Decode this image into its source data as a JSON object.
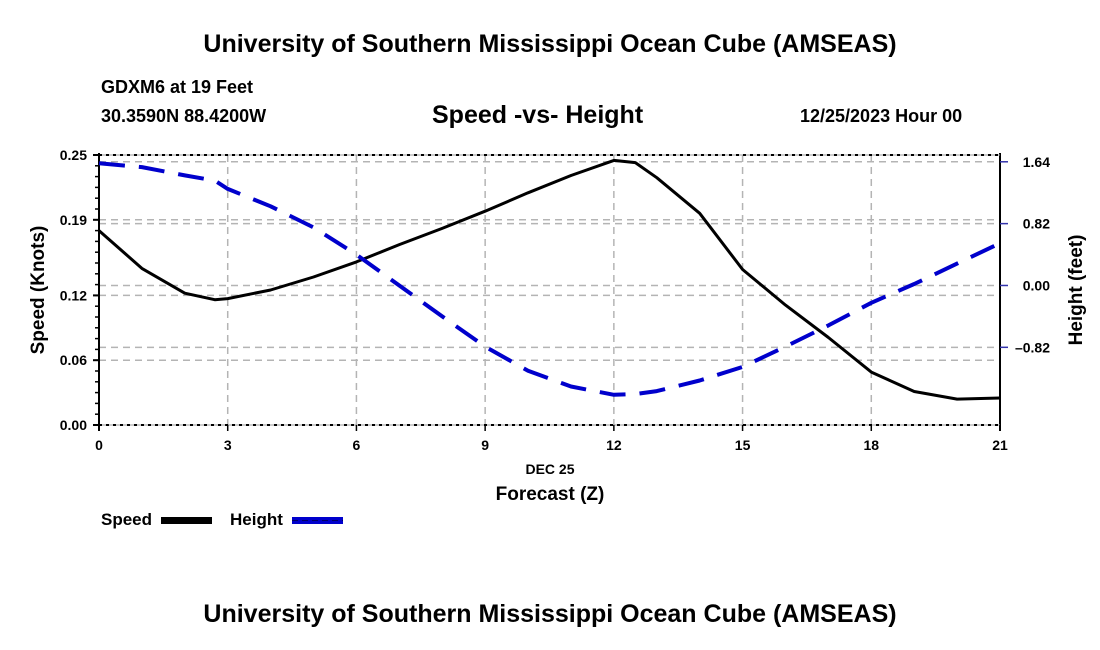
{
  "header": {
    "top_title": "University of Southern Mississippi Ocean Cube (AMSEAS)",
    "station": "GDXM6 at 19 Feet",
    "coords": "30.3590N  88.4200W",
    "chart_title": "Speed -vs- Height",
    "datetime": "12/25/2023 Hour 00",
    "bottom_title": "University of Southern Mississippi Ocean Cube (AMSEAS)"
  },
  "chart_data": {
    "type": "line",
    "title": "Speed -vs- Height",
    "xlabel": "Forecast (Z)",
    "xsublabel": "DEC 25",
    "ylabel": "Speed (Knots)",
    "y2label": "Height (feet)",
    "xlim": [
      0,
      21
    ],
    "ylim": [
      0,
      0.25
    ],
    "y2lim": [
      -1.85,
      1.73
    ],
    "xticks": [
      0,
      3,
      6,
      9,
      12,
      15,
      18,
      21
    ],
    "xtick_labels": [
      "0",
      "3",
      "6",
      "9",
      "12",
      "15",
      "18",
      "21"
    ],
    "yticks": [
      0.0,
      0.06,
      0.12,
      0.19,
      0.25
    ],
    "ytick_labels": [
      "0.00",
      "0.06",
      "0.12",
      "0.19",
      "0.25"
    ],
    "y2ticks": [
      -0.82,
      0.0,
      0.82,
      1.64
    ],
    "y2tick_labels": [
      "–0.82",
      "0.00",
      "0.82",
      "1.64"
    ],
    "grid": true,
    "legend_position": "bottom-left",
    "x": [
      0,
      1,
      2,
      2.7,
      3,
      4,
      5,
      6,
      7,
      8,
      9,
      10,
      11,
      12,
      12.5,
      13,
      14,
      15,
      16,
      17,
      18,
      19,
      20,
      21
    ],
    "series": [
      {
        "name": "Speed",
        "axis": "left",
        "color": "#000000",
        "style": "solid",
        "values": [
          0.18,
          0.145,
          0.122,
          0.116,
          0.117,
          0.125,
          0.137,
          0.151,
          0.167,
          0.182,
          0.198,
          0.215,
          0.231,
          0.245,
          0.243,
          0.229,
          0.196,
          0.144,
          0.111,
          0.081,
          0.049,
          0.031,
          0.024,
          0.025
        ]
      },
      {
        "name": "Height",
        "axis": "right",
        "color": "#0000cc",
        "style": "dashed",
        "values": [
          1.62,
          1.57,
          1.46,
          1.39,
          1.28,
          1.05,
          0.77,
          0.41,
          0.0,
          -0.41,
          -0.81,
          -1.13,
          -1.34,
          -1.45,
          -1.44,
          -1.4,
          -1.26,
          -1.08,
          -0.81,
          -0.53,
          -0.23,
          0.02,
          0.29,
          0.56
        ]
      }
    ]
  },
  "legend": {
    "speed_label": "Speed",
    "height_label": "Height"
  }
}
